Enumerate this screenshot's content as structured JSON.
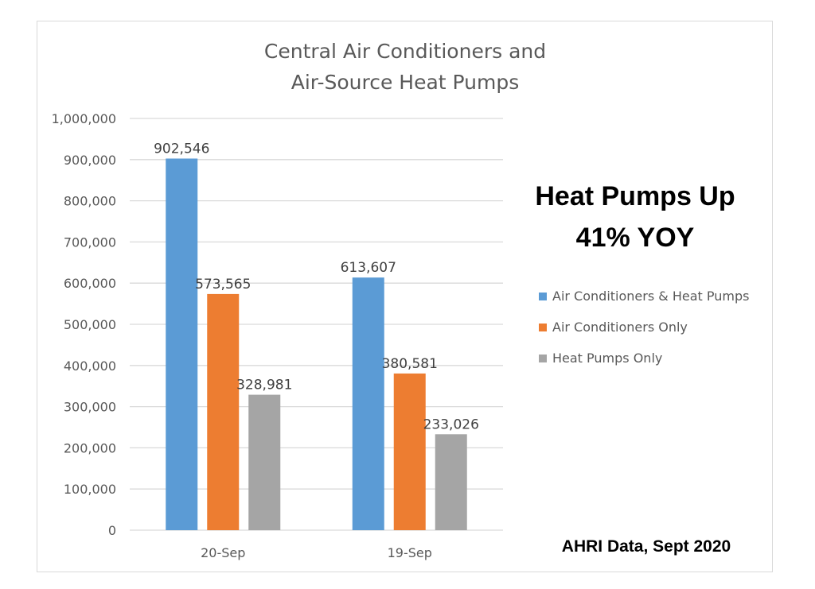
{
  "chart_data": {
    "type": "bar",
    "title_lines": [
      "Central Air Conditioners and",
      "Air-Source Heat Pumps"
    ],
    "categories": [
      "20-Sep",
      "19-Sep"
    ],
    "series": [
      {
        "name": "Air Conditioners & Heat Pumps",
        "color": "#5b9bd5",
        "values": [
          902546,
          613607
        ]
      },
      {
        "name": "Air Conditioners Only",
        "color": "#ed7d31",
        "values": [
          573565,
          380581
        ]
      },
      {
        "name": "Heat Pumps Only",
        "color": "#a5a5a5",
        "values": [
          328981,
          233026
        ]
      }
    ],
    "data_labels": [
      [
        "902,546",
        "613,607"
      ],
      [
        "573,565",
        "380,581"
      ],
      [
        "328,981",
        "233,026"
      ]
    ],
    "ylim": [
      0,
      1000000
    ],
    "y_ticks": [
      0,
      100000,
      200000,
      300000,
      400000,
      500000,
      600000,
      700000,
      800000,
      900000,
      1000000
    ],
    "y_tick_labels": [
      "0",
      "100,000",
      "200,000",
      "300,000",
      "400,000",
      "500,000",
      "600,000",
      "700,000",
      "800,000",
      "900,000",
      "1,000,000"
    ],
    "grid": true,
    "legend_position": "right"
  },
  "annotations": {
    "callout_lines": [
      "Heat Pumps Up",
      "41% YOY"
    ],
    "source": "AHRI Data, Sept 2020"
  }
}
